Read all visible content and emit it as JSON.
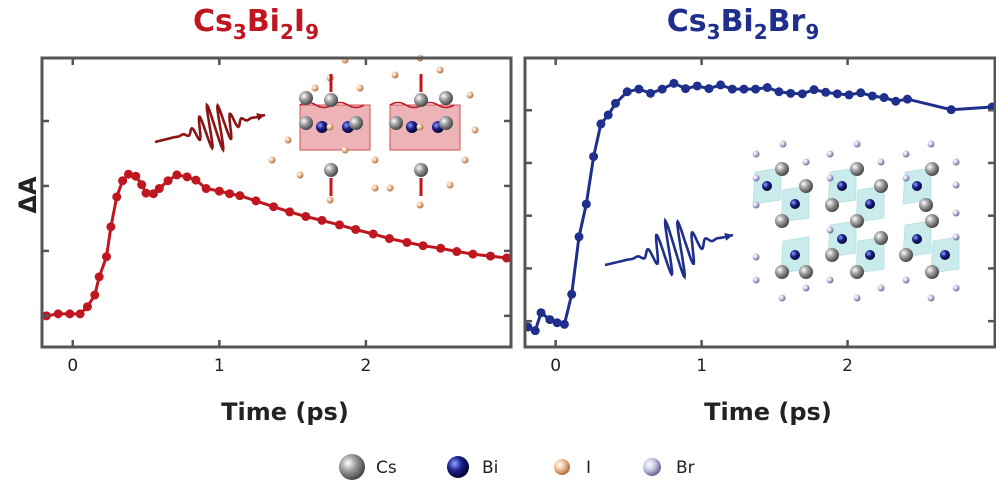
{
  "chart_data": [
    {
      "type": "line",
      "title_parts": [
        {
          "t": "Cs"
        },
        {
          "s": "3"
        },
        {
          "t": "Bi"
        },
        {
          "s": "2"
        },
        {
          "t": "I"
        },
        {
          "s": "9"
        }
      ],
      "title": "Cs3Bi2I9",
      "xlabel": "Time (ps)",
      "ylabel": "ΔA",
      "xlim": [
        -0.21,
        2.99
      ],
      "ylim": [
        -0.48,
        3.97
      ],
      "xticks": [
        0,
        1,
        2
      ],
      "xtick_labels": [
        "0",
        "1",
        "2"
      ],
      "yticks": [
        0,
        1,
        2,
        3
      ],
      "color": "#c0161f",
      "series": [
        {
          "name": "Cs3Bi2I9",
          "x": [
            -0.18,
            -0.1,
            -0.02,
            0.05,
            0.1,
            0.15,
            0.18,
            0.23,
            0.26,
            0.3,
            0.34,
            0.38,
            0.43,
            0.47,
            0.5,
            0.55,
            0.59,
            0.65,
            0.71,
            0.78,
            0.84,
            0.91,
            1.0,
            1.07,
            1.14,
            1.25,
            1.37,
            1.48,
            1.59,
            1.7,
            1.82,
            1.93,
            2.05,
            2.16,
            2.28,
            2.39,
            2.51,
            2.62,
            2.73,
            2.85,
            2.96
          ],
          "y": [
            0.0,
            0.03,
            0.03,
            0.03,
            0.14,
            0.32,
            0.6,
            0.91,
            1.37,
            1.83,
            2.08,
            2.18,
            2.15,
            2.02,
            1.89,
            1.88,
            1.96,
            2.08,
            2.17,
            2.14,
            2.09,
            1.96,
            1.92,
            1.88,
            1.85,
            1.77,
            1.68,
            1.6,
            1.53,
            1.47,
            1.4,
            1.33,
            1.26,
            1.19,
            1.13,
            1.08,
            1.04,
            0.99,
            0.95,
            0.92,
            0.89
          ]
        }
      ]
    },
    {
      "type": "line",
      "title_parts": [
        {
          "t": "Cs"
        },
        {
          "s": "3"
        },
        {
          "t": "Bi"
        },
        {
          "s": "2"
        },
        {
          "t": "Br"
        },
        {
          "s": "9"
        }
      ],
      "title": "Cs3Bi2Br9",
      "xlabel": "Time (ps)",
      "xlim": [
        -0.21,
        3.01
      ],
      "ylim": [
        -0.49,
        4.99
      ],
      "xticks": [
        0,
        1,
        2
      ],
      "xtick_labels": [
        "0",
        "1",
        "2"
      ],
      "yticks": [
        0,
        1,
        2,
        3,
        4
      ],
      "color": "#1f2f8c",
      "series": [
        {
          "name": "Cs3Bi2Br9",
          "x": [
            -0.19,
            -0.14,
            -0.1,
            -0.04,
            0.01,
            0.06,
            0.11,
            0.16,
            0.21,
            0.26,
            0.31,
            0.36,
            0.41,
            0.49,
            0.57,
            0.65,
            0.73,
            0.81,
            0.89,
            0.97,
            1.05,
            1.13,
            1.21,
            1.29,
            1.37,
            1.45,
            1.53,
            1.61,
            1.69,
            1.77,
            1.85,
            1.93,
            2.01,
            2.09,
            2.17,
            2.25,
            2.33,
            2.41,
            2.71,
            2.99
          ],
          "y": [
            -0.11,
            -0.18,
            0.16,
            0.03,
            -0.03,
            -0.06,
            0.51,
            1.6,
            2.22,
            3.12,
            3.74,
            3.91,
            4.13,
            4.35,
            4.4,
            4.32,
            4.4,
            4.51,
            4.41,
            4.46,
            4.41,
            4.48,
            4.4,
            4.4,
            4.4,
            4.43,
            4.35,
            4.32,
            4.31,
            4.39,
            4.34,
            4.31,
            4.29,
            4.33,
            4.27,
            4.24,
            4.17,
            4.21,
            4.01,
            4.06
          ]
        }
      ]
    }
  ],
  "legend": [
    {
      "label": "Cs",
      "color": "#8a8a8a"
    },
    {
      "label": "Bi",
      "color": "#1a1f7a"
    },
    {
      "label": "I",
      "color": "#e8b08a"
    },
    {
      "label": "Br",
      "color": "#b8b8d8"
    }
  ]
}
